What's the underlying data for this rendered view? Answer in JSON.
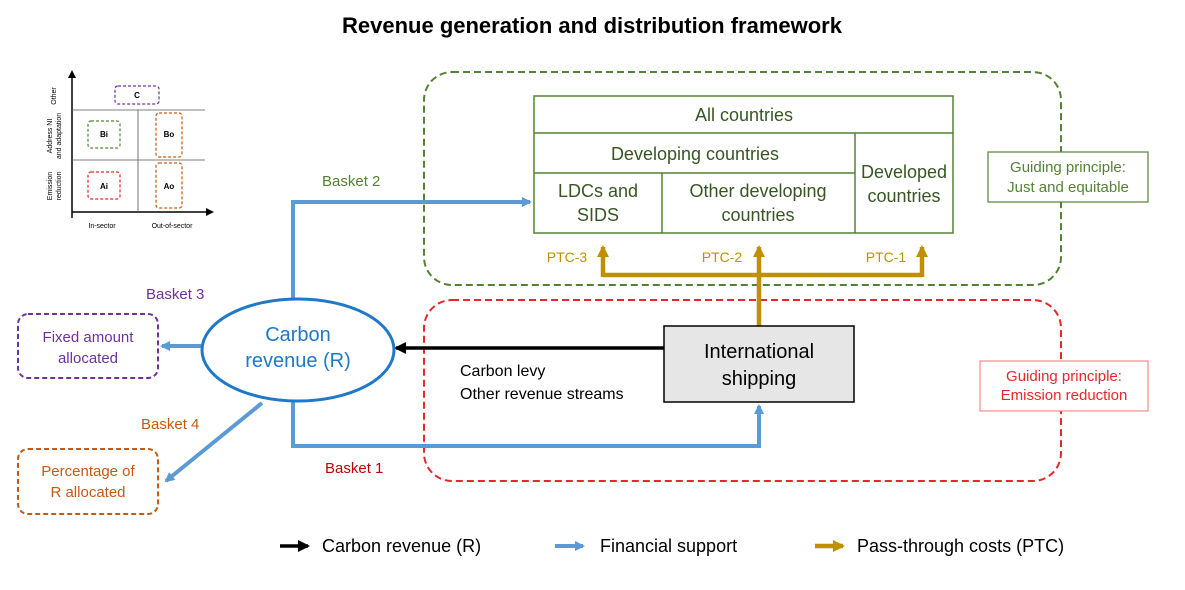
{
  "title": "Revenue generation and distribution framework",
  "colors": {
    "green": "#548235",
    "red": "#e8262b",
    "blue": "#5b9bd5",
    "circle_blue": "#1f78c8",
    "gold": "#bf9000",
    "purple": "#7030a0",
    "orange": "#c55a11",
    "grey_fill": "#e7e6e6"
  },
  "matrix": {
    "row_labels": [
      "Other",
      "Address NI and adaptation",
      "Emission reduction"
    ],
    "col_labels": [
      "In-sector",
      "Out-of-sector"
    ],
    "cells": [
      "C",
      "Bi",
      "Bo",
      "Ai",
      "Ao"
    ]
  },
  "countries": {
    "all": "All countries",
    "developing": "Developing countries",
    "ldcs_line1": "LDCs and",
    "ldcs_line2": "SIDS",
    "other_line1": "Other developing",
    "other_line2": "countries",
    "developed_line1": "Developed",
    "developed_line2": "countries"
  },
  "principles": {
    "just_line1": "Guiding principle:",
    "just_line2": "Just and equitable",
    "emission_line1": "Guiding principle:",
    "emission_line2": "Emission reduction"
  },
  "ptc": [
    "PTC-3",
    "PTC-2",
    "PTC-1"
  ],
  "carbon_revenue": {
    "line1": "Carbon",
    "line2": "revenue (R)"
  },
  "shipping": {
    "line1": "International",
    "line2": "shipping"
  },
  "revenue_streams": {
    "line1": "Carbon levy",
    "line2": "Other revenue streams"
  },
  "baskets": {
    "b1": "Basket 1",
    "b2": "Basket 2",
    "b3": "Basket 3",
    "b4": "Basket 4"
  },
  "fixed_amount": {
    "line1": "Fixed amount",
    "line2": "allocated"
  },
  "percentage": {
    "line1": "Percentage of",
    "line2": "R allocated"
  },
  "legend": [
    "Carbon revenue (R)",
    "Financial support",
    "Pass-through costs (PTC)"
  ]
}
